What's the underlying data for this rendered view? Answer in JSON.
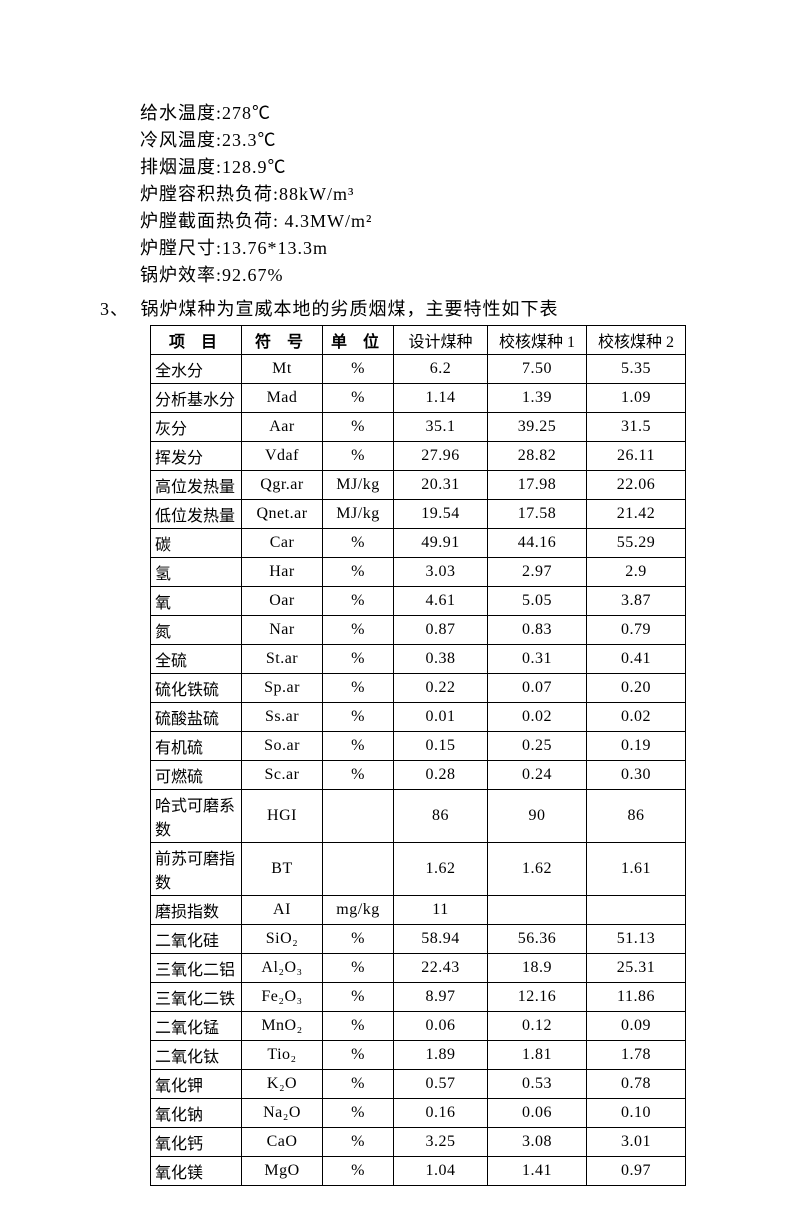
{
  "params": [
    "给水温度:278℃",
    "冷风温度:23.3℃",
    "排烟温度:128.9℃",
    "炉膛容积热负荷:88kW/m³",
    "炉膛截面热负荷: 4.3MW/m²",
    "炉膛尺寸:13.76*13.3m",
    "锅炉效率:92.67%"
  ],
  "section": {
    "num": "3、",
    "title": "锅炉煤种为宣威本地的劣质烟煤，主要特性如下表"
  },
  "table": {
    "headers": [
      "项 目",
      "符 号",
      "单 位",
      "设计煤种",
      "校核煤种 1",
      "校核煤种 2"
    ],
    "rows": [
      [
        "全水分",
        "Mt",
        "%",
        "6.2",
        "7.50",
        "5.35"
      ],
      [
        "分析基水分",
        "Mad",
        "%",
        "1.14",
        "1.39",
        "1.09"
      ],
      [
        "灰分",
        "Aar",
        "%",
        "35.1",
        "39.25",
        "31.5"
      ],
      [
        "挥发分",
        "Vdaf",
        "%",
        "27.96",
        "28.82",
        "26.11"
      ],
      [
        "高位发热量",
        "Qgr.ar",
        "MJ/kg",
        "20.31",
        "17.98",
        "22.06"
      ],
      [
        "低位发热量",
        "Qnet.ar",
        "MJ/kg",
        "19.54",
        "17.58",
        "21.42"
      ],
      [
        "碳",
        "Car",
        "%",
        "49.91",
        "44.16",
        "55.29"
      ],
      [
        "氢",
        "Har",
        "%",
        "3.03",
        "2.97",
        "2.9"
      ],
      [
        "氧",
        "Oar",
        "%",
        "4.61",
        "5.05",
        "3.87"
      ],
      [
        "氮",
        "Nar",
        "%",
        "0.87",
        "0.83",
        "0.79"
      ],
      [
        "全硫",
        "St.ar",
        "%",
        "0.38",
        "0.31",
        "0.41"
      ],
      [
        "硫化铁硫",
        "Sp.ar",
        "%",
        "0.22",
        "0.07",
        "0.20"
      ],
      [
        "硫酸盐硫",
        "Ss.ar",
        "%",
        "0.01",
        "0.02",
        "0.02"
      ],
      [
        "有机硫",
        "So.ar",
        "%",
        "0.15",
        "0.25",
        "0.19"
      ],
      [
        "可燃硫",
        "Sc.ar",
        "%",
        "0.28",
        "0.24",
        "0.30"
      ],
      [
        "哈式可磨系数",
        "HGI",
        "",
        "86",
        "90",
        "86"
      ],
      [
        "前苏可磨指数",
        "BT",
        "",
        "1.62",
        "1.62",
        "1.61"
      ],
      [
        "磨损指数",
        "AI",
        "mg/kg",
        "11",
        "",
        ""
      ],
      [
        "二氧化硅",
        "SiO₂",
        "%",
        "58.94",
        "56.36",
        "51.13"
      ],
      [
        "三氧化二铝",
        "Al₂O₃",
        "%",
        "22.43",
        "18.9",
        "25.31"
      ],
      [
        "三氧化二铁",
        "Fe₂O₃",
        "%",
        "8.97",
        "12.16",
        "11.86"
      ],
      [
        "二氧化锰",
        "MnO₂",
        "%",
        "0.06",
        "0.12",
        "0.09"
      ],
      [
        "二氧化钛",
        "Tio₂",
        "%",
        "1.89",
        "1.81",
        "1.78"
      ],
      [
        "氧化钾",
        "K₂O",
        "%",
        "0.57",
        "0.53",
        "0.78"
      ],
      [
        "氧化钠",
        "Na₂O",
        "%",
        "0.16",
        "0.06",
        "0.10"
      ],
      [
        "氧化钙",
        "CaO",
        "%",
        "3.25",
        "3.08",
        "3.01"
      ],
      [
        "氧化镁",
        "MgO",
        "%",
        "1.04",
        "1.41",
        "0.97"
      ]
    ],
    "col_classes": [
      "col-item",
      "col-sym",
      "col-unit",
      "col-v",
      "col-v2",
      "col-v2"
    ],
    "text_color": "#000000",
    "border_color": "#000000",
    "font_size_pt": 12
  }
}
